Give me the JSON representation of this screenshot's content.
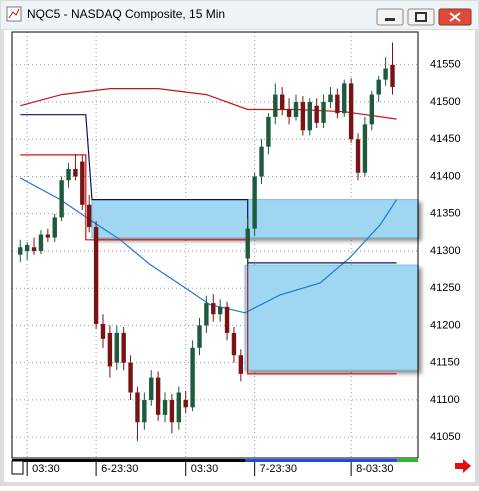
{
  "chart_data": {
    "type": "candlestick",
    "title": "NQC5 - NASDAQ Composite, 15 Min",
    "open": [
      41295,
      41300,
      41305,
      41300,
      41322,
      41318,
      41345,
      41395,
      41410,
      41420,
      41362,
      41332,
      41202,
      41190,
      41150,
      41190,
      41150,
      41110,
      41070,
      41100,
      41130,
      41080,
      41100,
      41070,
      41100,
      41090,
      41170,
      41200,
      41230,
      41215,
      41225,
      41190,
      41160,
      41290,
      41330,
      41400,
      41440,
      41480,
      41510,
      41490,
      41480,
      41500,
      41462,
      41495,
      41472,
      41500,
      41510,
      41485,
      41525,
      41450,
      41405,
      41470,
      41510,
      41530,
      41550
    ],
    "high": [
      41315,
      41312,
      41318,
      41328,
      41330,
      41350,
      41400,
      41418,
      41430,
      41428,
      41375,
      41340,
      41215,
      41200,
      41200,
      41198,
      41160,
      41118,
      41110,
      41140,
      41138,
      41110,
      41108,
      41118,
      41112,
      41180,
      41210,
      41240,
      41242,
      41235,
      41232,
      41198,
      41168,
      41345,
      41405,
      41450,
      41485,
      41525,
      41520,
      41505,
      41510,
      41508,
      41505,
      41505,
      41510,
      41520,
      41518,
      41530,
      41532,
      41458,
      41480,
      41515,
      41535,
      41560,
      41580
    ],
    "low": [
      41285,
      41288,
      41295,
      41296,
      41312,
      41312,
      41340,
      41385,
      41395,
      41355,
      41325,
      41195,
      41170,
      41130,
      41140,
      41140,
      41100,
      41045,
      41060,
      41092,
      41072,
      41070,
      41055,
      41060,
      41082,
      41085,
      41160,
      41190,
      41205,
      41205,
      41180,
      41150,
      41125,
      41280,
      41320,
      41390,
      41430,
      41470,
      41482,
      41470,
      41475,
      41455,
      41455,
      41465,
      41465,
      41492,
      41478,
      41480,
      41445,
      41395,
      41400,
      41462,
      41500,
      41522,
      41510
    ],
    "close": [
      41305,
      41308,
      41300,
      41322,
      41318,
      41345,
      41395,
      41410,
      41400,
      41362,
      41332,
      41202,
      41182,
      41145,
      41190,
      41150,
      41110,
      41070,
      41100,
      41130,
      41080,
      41100,
      41070,
      41110,
      41090,
      41170,
      41200,
      41230,
      41215,
      41225,
      41190,
      41160,
      41135,
      41330,
      41400,
      41440,
      41480,
      41510,
      41490,
      41480,
      41500,
      41462,
      41500,
      41472,
      41500,
      41510,
      41485,
      41525,
      41450,
      41405,
      41470,
      41510,
      41530,
      41545,
      41520
    ],
    "up_color": "#1e5a3c",
    "down_color": "#7a1414",
    "overlays": [
      {
        "color": "#c0181c",
        "x": [
          0,
          6,
          13,
          20,
          27,
          33,
          40,
          47,
          54.6
        ],
        "values": [
          41495,
          41510,
          41518,
          41518,
          41510,
          41490,
          41490,
          41487,
          41477
        ]
      },
      {
        "color": "#1e78d0",
        "x": [
          0,
          5.8,
          10.1,
          14.5,
          18.8,
          23.2,
          27.5,
          32.6,
          37.7,
          43.5,
          47.8,
          52.2,
          54.6
        ],
        "values": [
          41398,
          41369,
          41342,
          41315,
          41282,
          41255,
          41228,
          41217,
          41241,
          41257,
          41291,
          41335,
          41369
        ]
      },
      {
        "color": "#d01010",
        "x": [
          0,
          9.5,
          9.5,
          33,
          33,
          54.6
        ],
        "values": [
          41429,
          41429,
          41315,
          41315,
          41135,
          41135
        ]
      },
      {
        "color": "#101060",
        "x": [
          0,
          9.5,
          10.4,
          33,
          33,
          54.6
        ],
        "values": [
          41483,
          41483,
          41369,
          41369,
          41284,
          41284
        ]
      }
    ],
    "zones": [
      {
        "color": "#9fd6f2",
        "x": [
          10.4,
          57.7
        ],
        "top": 41369,
        "bottom": 41318
      },
      {
        "color": "#9fd6f2",
        "x": [
          32.6,
          57.7
        ],
        "top": 41281,
        "bottom": 41140
      }
    ],
    "xlim": [
      -1.2,
      57.7
    ],
    "ylim": [
      41022,
      41594
    ],
    "yticks": [
      41050,
      41100,
      41150,
      41200,
      41250,
      41300,
      41350,
      41400,
      41450,
      41500,
      41550
    ],
    "xticks": [
      {
        "value": 1,
        "label": "03:30"
      },
      {
        "value": 11,
        "label": "6-23:30"
      },
      {
        "value": 24,
        "label": "03:30"
      },
      {
        "value": 34,
        "label": "7-23:30"
      },
      {
        "value": 48,
        "label": "8-03:30"
      }
    ],
    "grid": true
  }
}
